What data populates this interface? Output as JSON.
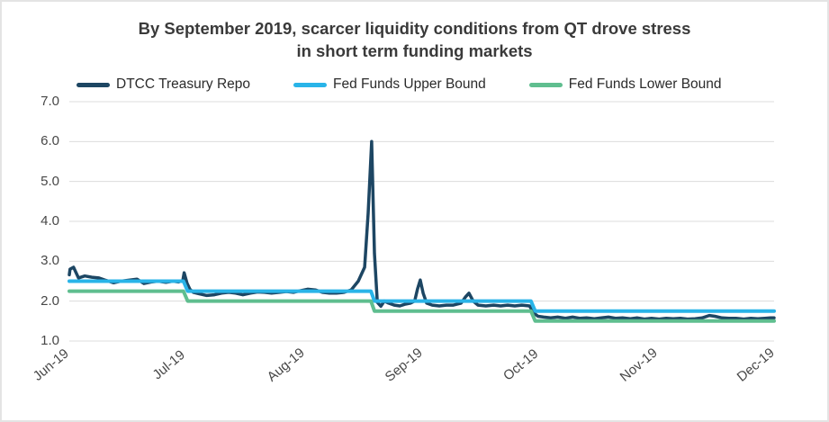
{
  "frame": {
    "background_color": "#ffffff",
    "border_color": "#e4e4e4"
  },
  "title": {
    "text": "By September 2019, scarcer liquidity conditions from QT drove stress in short term funding markets",
    "lines": [
      "By September 2019, scarcer liquidity conditions from QT drove stress",
      "in short term funding markets"
    ],
    "color": "#3a3a3a"
  },
  "legend": {
    "position": "top",
    "items": [
      {
        "label": "DTCC Treasury Repo",
        "color": "#1d4663"
      },
      {
        "label": "Fed Funds Upper Bound",
        "color": "#29b4e8"
      },
      {
        "label": "Fed Funds Lower Bound",
        "color": "#5fbe8f"
      }
    ]
  },
  "chart_data": {
    "type": "line",
    "title": "By September 2019, scarcer liquidity conditions from QT drove stress in short term funding markets",
    "grid": "horizontal",
    "legend_position": "top",
    "x_axis": {
      "tick_labels": [
        "Jun-19",
        "Jul-19",
        "Aug-19",
        "Sep-19",
        "Oct-19",
        "Nov-19",
        "Dec-19"
      ],
      "note": "series x values are percent of the horizontal axis from Jun-19 (0) to Dec-19 (100)"
    },
    "y_axis": {
      "min": 1.0,
      "max": 7.0,
      "tick_values": [
        7.0,
        6.0,
        5.0,
        4.0,
        3.0,
        2.0,
        1.0
      ],
      "tick_labels": [
        "7.0",
        "6.0",
        "5.0",
        "4.0",
        "3.0",
        "2.0",
        "1.0"
      ]
    },
    "series": [
      {
        "name": "DTCC Treasury Repo",
        "color": "#1d4663",
        "stroke_width": 3.5,
        "points": [
          [
            0,
            2.66
          ],
          [
            0.1,
            2.8
          ],
          [
            0.6,
            2.85
          ],
          [
            1.3,
            2.58
          ],
          [
            2.2,
            2.63
          ],
          [
            3.2,
            2.6
          ],
          [
            4.2,
            2.58
          ],
          [
            5.2,
            2.52
          ],
          [
            6.3,
            2.46
          ],
          [
            7.3,
            2.5
          ],
          [
            8.6,
            2.53
          ],
          [
            9.6,
            2.55
          ],
          [
            10.6,
            2.44
          ],
          [
            11.6,
            2.48
          ],
          [
            12.6,
            2.5
          ],
          [
            13.7,
            2.47
          ],
          [
            14.7,
            2.5
          ],
          [
            15.5,
            2.48
          ],
          [
            16.1,
            2.52
          ],
          [
            16.3,
            2.71
          ],
          [
            16.7,
            2.45
          ],
          [
            17.1,
            2.3
          ],
          [
            17.6,
            2.22
          ],
          [
            18.5,
            2.18
          ],
          [
            19.5,
            2.14
          ],
          [
            20.6,
            2.16
          ],
          [
            21.6,
            2.2
          ],
          [
            22.6,
            2.22
          ],
          [
            23.6,
            2.2
          ],
          [
            24.6,
            2.16
          ],
          [
            25.7,
            2.2
          ],
          [
            26.7,
            2.23
          ],
          [
            27.7,
            2.22
          ],
          [
            28.7,
            2.2
          ],
          [
            29.8,
            2.22
          ],
          [
            30.8,
            2.24
          ],
          [
            31.8,
            2.22
          ],
          [
            32.8,
            2.26
          ],
          [
            33.8,
            2.3
          ],
          [
            34.9,
            2.28
          ],
          [
            35.9,
            2.22
          ],
          [
            36.9,
            2.2
          ],
          [
            37.9,
            2.2
          ],
          [
            39.0,
            2.22
          ],
          [
            40.0,
            2.28
          ],
          [
            41.0,
            2.5
          ],
          [
            41.9,
            2.85
          ],
          [
            42.4,
            4.2
          ],
          [
            42.9,
            6.0
          ],
          [
            43.3,
            3.2
          ],
          [
            43.7,
            1.97
          ],
          [
            44.2,
            1.87
          ],
          [
            44.7,
            2.0
          ],
          [
            45.3,
            1.95
          ],
          [
            46.1,
            1.9
          ],
          [
            46.9,
            1.88
          ],
          [
            47.6,
            1.92
          ],
          [
            48.4,
            1.95
          ],
          [
            49.0,
            2.0
          ],
          [
            49.4,
            2.3
          ],
          [
            49.8,
            2.53
          ],
          [
            50.2,
            2.2
          ],
          [
            50.7,
            1.95
          ],
          [
            51.5,
            1.9
          ],
          [
            52.5,
            1.88
          ],
          [
            53.5,
            1.9
          ],
          [
            54.5,
            1.9
          ],
          [
            55.6,
            1.95
          ],
          [
            56.2,
            2.1
          ],
          [
            56.7,
            2.2
          ],
          [
            57.3,
            2.0
          ],
          [
            58.0,
            1.9
          ],
          [
            59.1,
            1.88
          ],
          [
            60.2,
            1.9
          ],
          [
            61.2,
            1.88
          ],
          [
            62.2,
            1.9
          ],
          [
            63.2,
            1.88
          ],
          [
            64.2,
            1.9
          ],
          [
            65.3,
            1.88
          ],
          [
            65.9,
            1.7
          ],
          [
            66.5,
            1.62
          ],
          [
            67.3,
            1.6
          ],
          [
            68.3,
            1.58
          ],
          [
            69.3,
            1.6
          ],
          [
            70.4,
            1.57
          ],
          [
            71.4,
            1.6
          ],
          [
            72.4,
            1.57
          ],
          [
            73.4,
            1.58
          ],
          [
            74.5,
            1.56
          ],
          [
            75.5,
            1.58
          ],
          [
            76.5,
            1.6
          ],
          [
            77.5,
            1.57
          ],
          [
            78.5,
            1.58
          ],
          [
            79.6,
            1.56
          ],
          [
            80.6,
            1.58
          ],
          [
            81.6,
            1.55
          ],
          [
            82.6,
            1.57
          ],
          [
            83.7,
            1.55
          ],
          [
            84.7,
            1.57
          ],
          [
            85.7,
            1.56
          ],
          [
            86.7,
            1.57
          ],
          [
            87.7,
            1.55
          ],
          [
            88.8,
            1.56
          ],
          [
            89.8,
            1.58
          ],
          [
            90.8,
            1.64
          ],
          [
            91.6,
            1.62
          ],
          [
            92.6,
            1.58
          ],
          [
            93.6,
            1.57
          ],
          [
            94.6,
            1.57
          ],
          [
            95.7,
            1.55
          ],
          [
            96.7,
            1.57
          ],
          [
            97.7,
            1.56
          ],
          [
            98.7,
            1.57
          ],
          [
            99.5,
            1.58
          ],
          [
            100,
            1.58
          ]
        ]
      },
      {
        "name": "Fed Funds Upper Bound",
        "color": "#29b4e8",
        "stroke_width": 4,
        "points": [
          [
            0,
            2.5
          ],
          [
            16.2,
            2.5
          ],
          [
            16.8,
            2.25
          ],
          [
            42.8,
            2.25
          ],
          [
            43.3,
            2.0
          ],
          [
            65.5,
            2.0
          ],
          [
            66.1,
            1.75
          ],
          [
            100,
            1.75
          ]
        ]
      },
      {
        "name": "Fed Funds Lower Bound",
        "color": "#5fbe8f",
        "stroke_width": 4,
        "points": [
          [
            0,
            2.25
          ],
          [
            16.2,
            2.25
          ],
          [
            16.8,
            2.0
          ],
          [
            42.8,
            2.0
          ],
          [
            43.3,
            1.75
          ],
          [
            65.5,
            1.75
          ],
          [
            66.1,
            1.5
          ],
          [
            100,
            1.5
          ]
        ]
      }
    ]
  }
}
